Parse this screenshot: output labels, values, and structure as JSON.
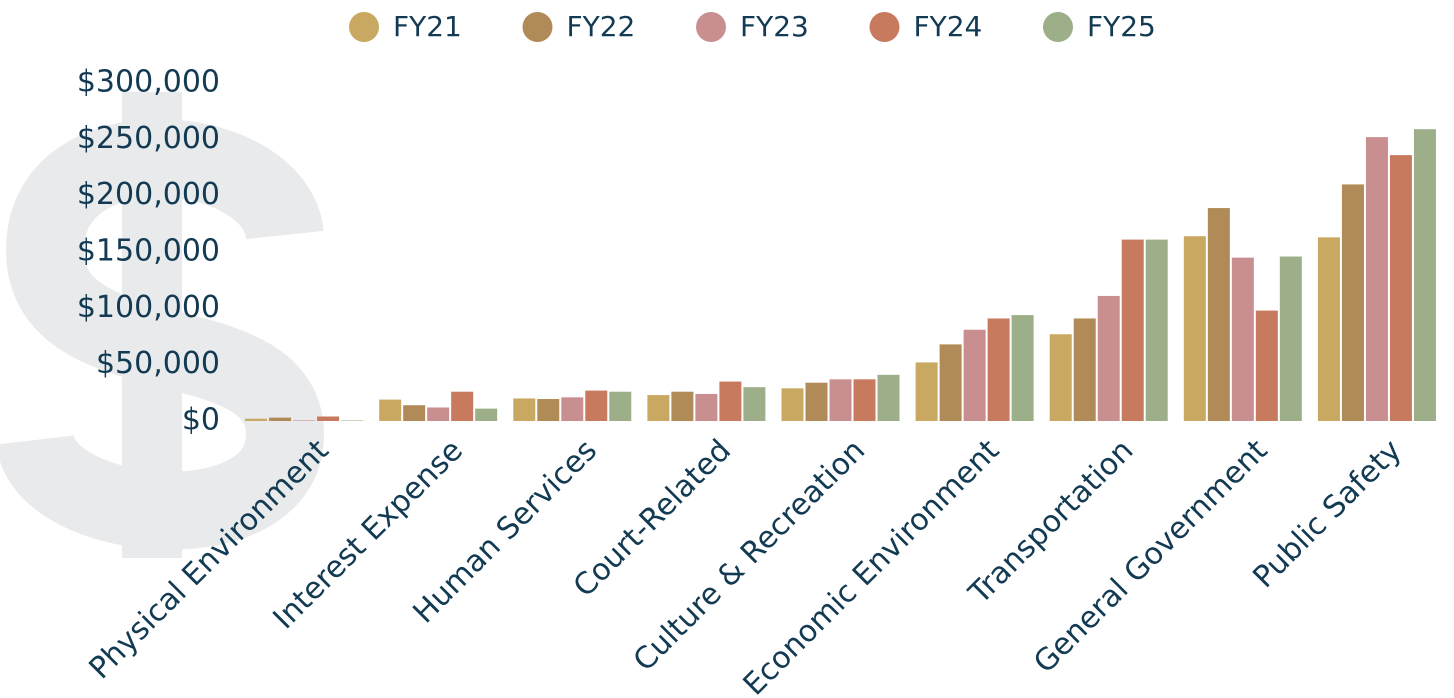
{
  "chart_data": {
    "type": "bar",
    "categories": [
      "Physical Environment",
      "Interest Expense",
      "Human Services",
      "Court-Related",
      "Culture & Recreation",
      "Economic Environment",
      "Transportation",
      "General Government",
      "Public Safety"
    ],
    "series": [
      {
        "name": "FY21",
        "color": "#c9a862",
        "values": [
          2000,
          19000,
          20000,
          23000,
          29000,
          52000,
          77000,
          164000,
          163000
        ]
      },
      {
        "name": "FY22",
        "color": "#b08b58",
        "values": [
          3000,
          14000,
          19500,
          26000,
          34000,
          68000,
          91000,
          189000,
          210000
        ]
      },
      {
        "name": "FY23",
        "color": "#c98f90",
        "values": [
          500,
          12000,
          21000,
          24000,
          37000,
          81000,
          111000,
          145000,
          252000
        ]
      },
      {
        "name": "FY24",
        "color": "#c87a5e",
        "values": [
          4000,
          26000,
          27000,
          35000,
          37000,
          91000,
          161000,
          98000,
          236000
        ]
      },
      {
        "name": "FY25",
        "color": "#9caf88",
        "values": [
          500,
          11000,
          26000,
          30000,
          41000,
          94000,
          161000,
          146000,
          259000
        ]
      }
    ],
    "ylim": [
      0,
      300000
    ],
    "yticks": [
      {
        "value": 0,
        "label": "$0"
      },
      {
        "value": 50000,
        "label": "$50,000"
      },
      {
        "value": 100000,
        "label": "$100,000"
      },
      {
        "value": 150000,
        "label": "$150,000"
      },
      {
        "value": 200000,
        "label": "$200,000"
      },
      {
        "value": 250000,
        "label": "$250,000"
      },
      {
        "value": 300000,
        "label": "$300,000"
      }
    ],
    "grid": false,
    "legend": "top"
  }
}
